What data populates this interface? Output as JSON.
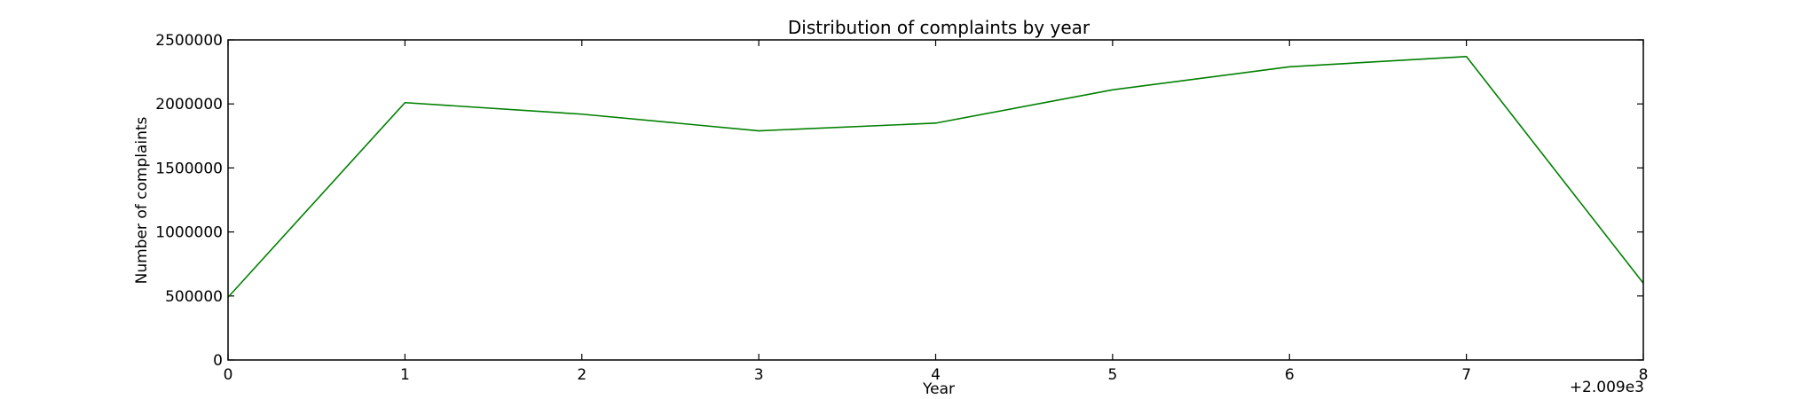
{
  "chart_data": {
    "type": "line",
    "title": "Distribution of complaints by year",
    "xlabel": "Year",
    "ylabel": "Number of complaints",
    "x_offset_label": "+2.009e3",
    "x": [
      0,
      1,
      2,
      3,
      4,
      5,
      6,
      7,
      8
    ],
    "x_tick_labels": [
      "0",
      "1",
      "2",
      "3",
      "4",
      "5",
      "6",
      "7",
      "8"
    ],
    "y_tick_labels": [
      "0",
      "500000",
      "1000000",
      "1500000",
      "2000000",
      "2500000"
    ],
    "y_ticks": [
      0,
      500000,
      1000000,
      1500000,
      2000000,
      2500000
    ],
    "xlim": [
      0,
      8
    ],
    "ylim": [
      0,
      2500000
    ],
    "grid": false,
    "series": [
      {
        "color": "#008000",
        "values": [
          490000,
          2010000,
          1920000,
          1790000,
          1850000,
          2110000,
          2290000,
          2370000,
          600000
        ]
      }
    ]
  }
}
